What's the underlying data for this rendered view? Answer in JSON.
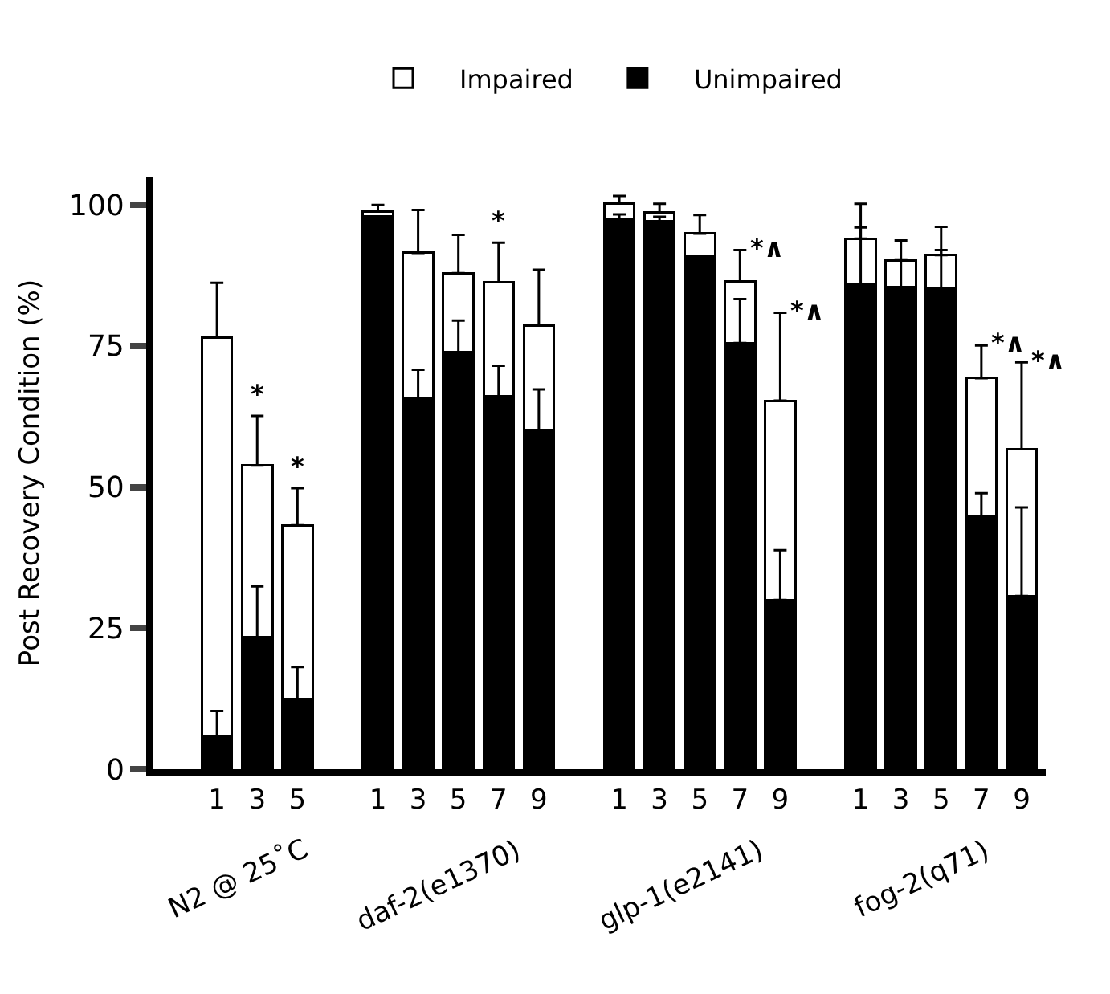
{
  "chart_data": {
    "type": "bar",
    "stacked": true,
    "ylabel": "Post Recovery Condition (%)",
    "categories": [
      "1",
      "3",
      "5",
      null,
      "1",
      "3",
      "5",
      "7",
      "9",
      null,
      "1",
      "3",
      "5",
      "7",
      "9",
      null,
      "1",
      "3",
      "5",
      "7",
      "9"
    ],
    "series": [
      {
        "name": "Unimpaired",
        "color": "#000000",
        "values": [
          5.7,
          23.4,
          12.4,
          null,
          97.9,
          65.6,
          73.9,
          66.1,
          60.1,
          null,
          97.5,
          97.1,
          91.0,
          75.5,
          30.0,
          null,
          85.9,
          85.4,
          85.1,
          44.9,
          30.7
        ],
        "errors": [
          [
            5.7,
            10.3
          ],
          [
            23.4,
            32.4
          ],
          [
            12.4,
            18.1
          ],
          null,
          null,
          [
            65.6,
            70.8
          ],
          [
            73.9,
            79.5
          ],
          [
            66.1,
            71.5
          ],
          [
            60.1,
            67.3
          ],
          null,
          [
            97.5,
            98.3
          ],
          [
            97.1,
            97.9
          ],
          null,
          [
            75.5,
            83.3
          ],
          [
            30.0,
            38.8
          ],
          null,
          [
            85.9,
            96.0
          ],
          [
            85.4,
            90.3
          ],
          [
            85.1,
            92.0
          ],
          [
            44.9,
            48.9
          ],
          [
            30.7,
            46.4
          ]
        ]
      },
      {
        "name": "Impaired",
        "color": "#ffffff",
        "values": [
          70.8,
          30.4,
          30.8,
          null,
          0.9,
          25.9,
          14.0,
          20.2,
          18.5,
          null,
          2.8,
          1.5,
          3.9,
          10.9,
          35.3,
          null,
          8.1,
          4.8,
          6.0,
          24.4,
          26.0
        ],
        "errors": [
          [
            76.5,
            86.2
          ],
          [
            53.8,
            62.6
          ],
          [
            43.2,
            49.8
          ],
          null,
          [
            98.8,
            100.0
          ],
          [
            91.5,
            99.1
          ],
          [
            87.9,
            94.7
          ],
          [
            86.3,
            93.3
          ],
          [
            78.6,
            88.5
          ],
          null,
          [
            100.3,
            101.6
          ],
          [
            98.6,
            100.2
          ],
          [
            94.9,
            98.2
          ],
          [
            86.4,
            92.0
          ],
          [
            65.3,
            80.9
          ],
          null,
          [
            94.0,
            100.2
          ],
          [
            90.2,
            93.7
          ],
          [
            91.1,
            96.1
          ],
          [
            69.3,
            75.1
          ],
          [
            56.7,
            72.1
          ]
        ],
        "value_labels": [
          null,
          "*",
          "*",
          null,
          null,
          null,
          null,
          "*",
          null,
          null,
          null,
          null,
          null,
          "*∧",
          "*∧",
          null,
          null,
          null,
          null,
          "*∧",
          "*∧"
        ]
      }
    ],
    "ylim": [
      0,
      105
    ],
    "yticks": [
      0,
      25,
      50,
      75,
      100
    ],
    "legend": "top",
    "annotations": [
      "N2 @ 25˚C",
      "daf-2(e1370)",
      "glp-1(e2141)",
      "fog-2(q71)"
    ]
  }
}
